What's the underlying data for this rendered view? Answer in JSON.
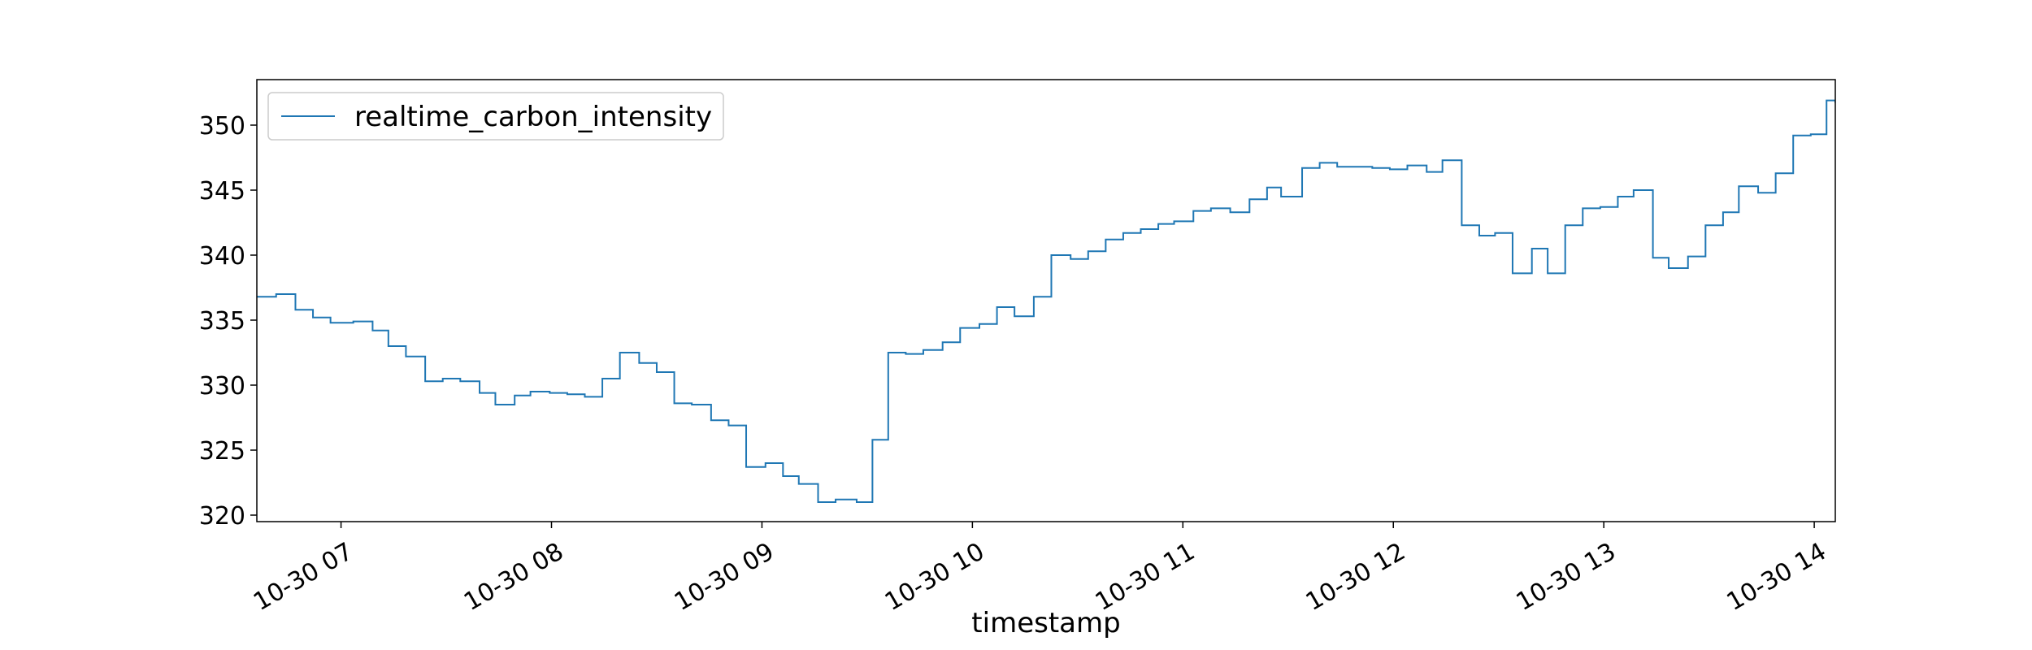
{
  "chart_data": {
    "type": "line",
    "drawstyle": "steps-post",
    "title": "",
    "xlabel": "timestamp",
    "ylabel": "",
    "legend": {
      "position": "top-left",
      "entries": [
        "realtime_carbon_intensity"
      ]
    },
    "grid": false,
    "x_unit": "minutes since 10-30 06:00",
    "xlim": [
      36.0,
      486.0
    ],
    "ylim": [
      319.5,
      353.5
    ],
    "yticks": [
      320,
      325,
      330,
      335,
      340,
      345,
      350
    ],
    "ytick_labels": [
      "320",
      "325",
      "330",
      "335",
      "340",
      "345",
      "350"
    ],
    "xticks": [
      60,
      120,
      180,
      240,
      300,
      360,
      420,
      480
    ],
    "xtick_labels": [
      "10-30 07",
      "10-30 08",
      "10-30 09",
      "10-30 10",
      "10-30 11",
      "10-30 12",
      "10-30 13",
      "10-30 14"
    ],
    "color": "#1f77b4",
    "series": [
      {
        "name": "realtime_carbon_intensity",
        "x": [
          36.0,
          41.5,
          47.0,
          52.0,
          57.0,
          63.5,
          69.0,
          73.5,
          78.5,
          84.0,
          89.0,
          94.0,
          99.5,
          104.0,
          109.5,
          114.0,
          119.5,
          124.5,
          129.5,
          134.5,
          139.5,
          145.0,
          150.0,
          155.0,
          160.0,
          165.5,
          170.5,
          175.5,
          181.0,
          186.0,
          190.5,
          196.0,
          201.0,
          207.0,
          211.5,
          216.0,
          221.0,
          226.0,
          231.5,
          236.5,
          242.0,
          247.0,
          252.0,
          257.5,
          262.5,
          268.0,
          273.0,
          278.0,
          283.0,
          288.0,
          293.0,
          297.5,
          303.0,
          308.0,
          313.5,
          319.0,
          324.0,
          328.0,
          334.0,
          339.0,
          344.0,
          349.0,
          354.0,
          359.0,
          364.0,
          369.5,
          374.0,
          379.5,
          384.5,
          389.0,
          394.0,
          399.5,
          404.0,
          409.0,
          414.0,
          419.0,
          424.0,
          428.5,
          434.0,
          438.5,
          444.0,
          449.0,
          454.0,
          458.5,
          464.0,
          469.0,
          474.0,
          479.0,
          483.5,
          486.0
        ],
        "values": [
          336.8,
          337.0,
          335.8,
          335.2,
          334.8,
          334.9,
          334.2,
          333.0,
          332.2,
          330.3,
          330.5,
          330.3,
          329.4,
          328.5,
          329.2,
          329.5,
          329.4,
          329.3,
          329.1,
          330.5,
          332.5,
          331.7,
          331.0,
          328.6,
          328.5,
          327.3,
          326.9,
          323.7,
          324.0,
          323.0,
          322.4,
          321.0,
          321.2,
          321.0,
          325.8,
          332.5,
          332.4,
          332.7,
          333.3,
          334.4,
          334.7,
          336.0,
          335.3,
          336.8,
          340.0,
          339.7,
          340.3,
          341.2,
          341.7,
          342.0,
          342.4,
          342.6,
          343.4,
          343.6,
          343.3,
          344.3,
          345.2,
          344.5,
          346.7,
          347.1,
          346.8,
          346.8,
          346.7,
          346.6,
          346.9,
          346.4,
          347.3,
          342.3,
          341.5,
          341.7,
          338.6,
          340.5,
          338.6,
          342.3,
          343.6,
          343.7,
          344.5,
          345.0,
          339.8,
          339.0,
          339.9,
          342.3,
          343.3,
          345.3,
          344.8,
          346.3,
          349.2,
          349.3,
          351.9,
          351.7
        ]
      }
    ]
  }
}
